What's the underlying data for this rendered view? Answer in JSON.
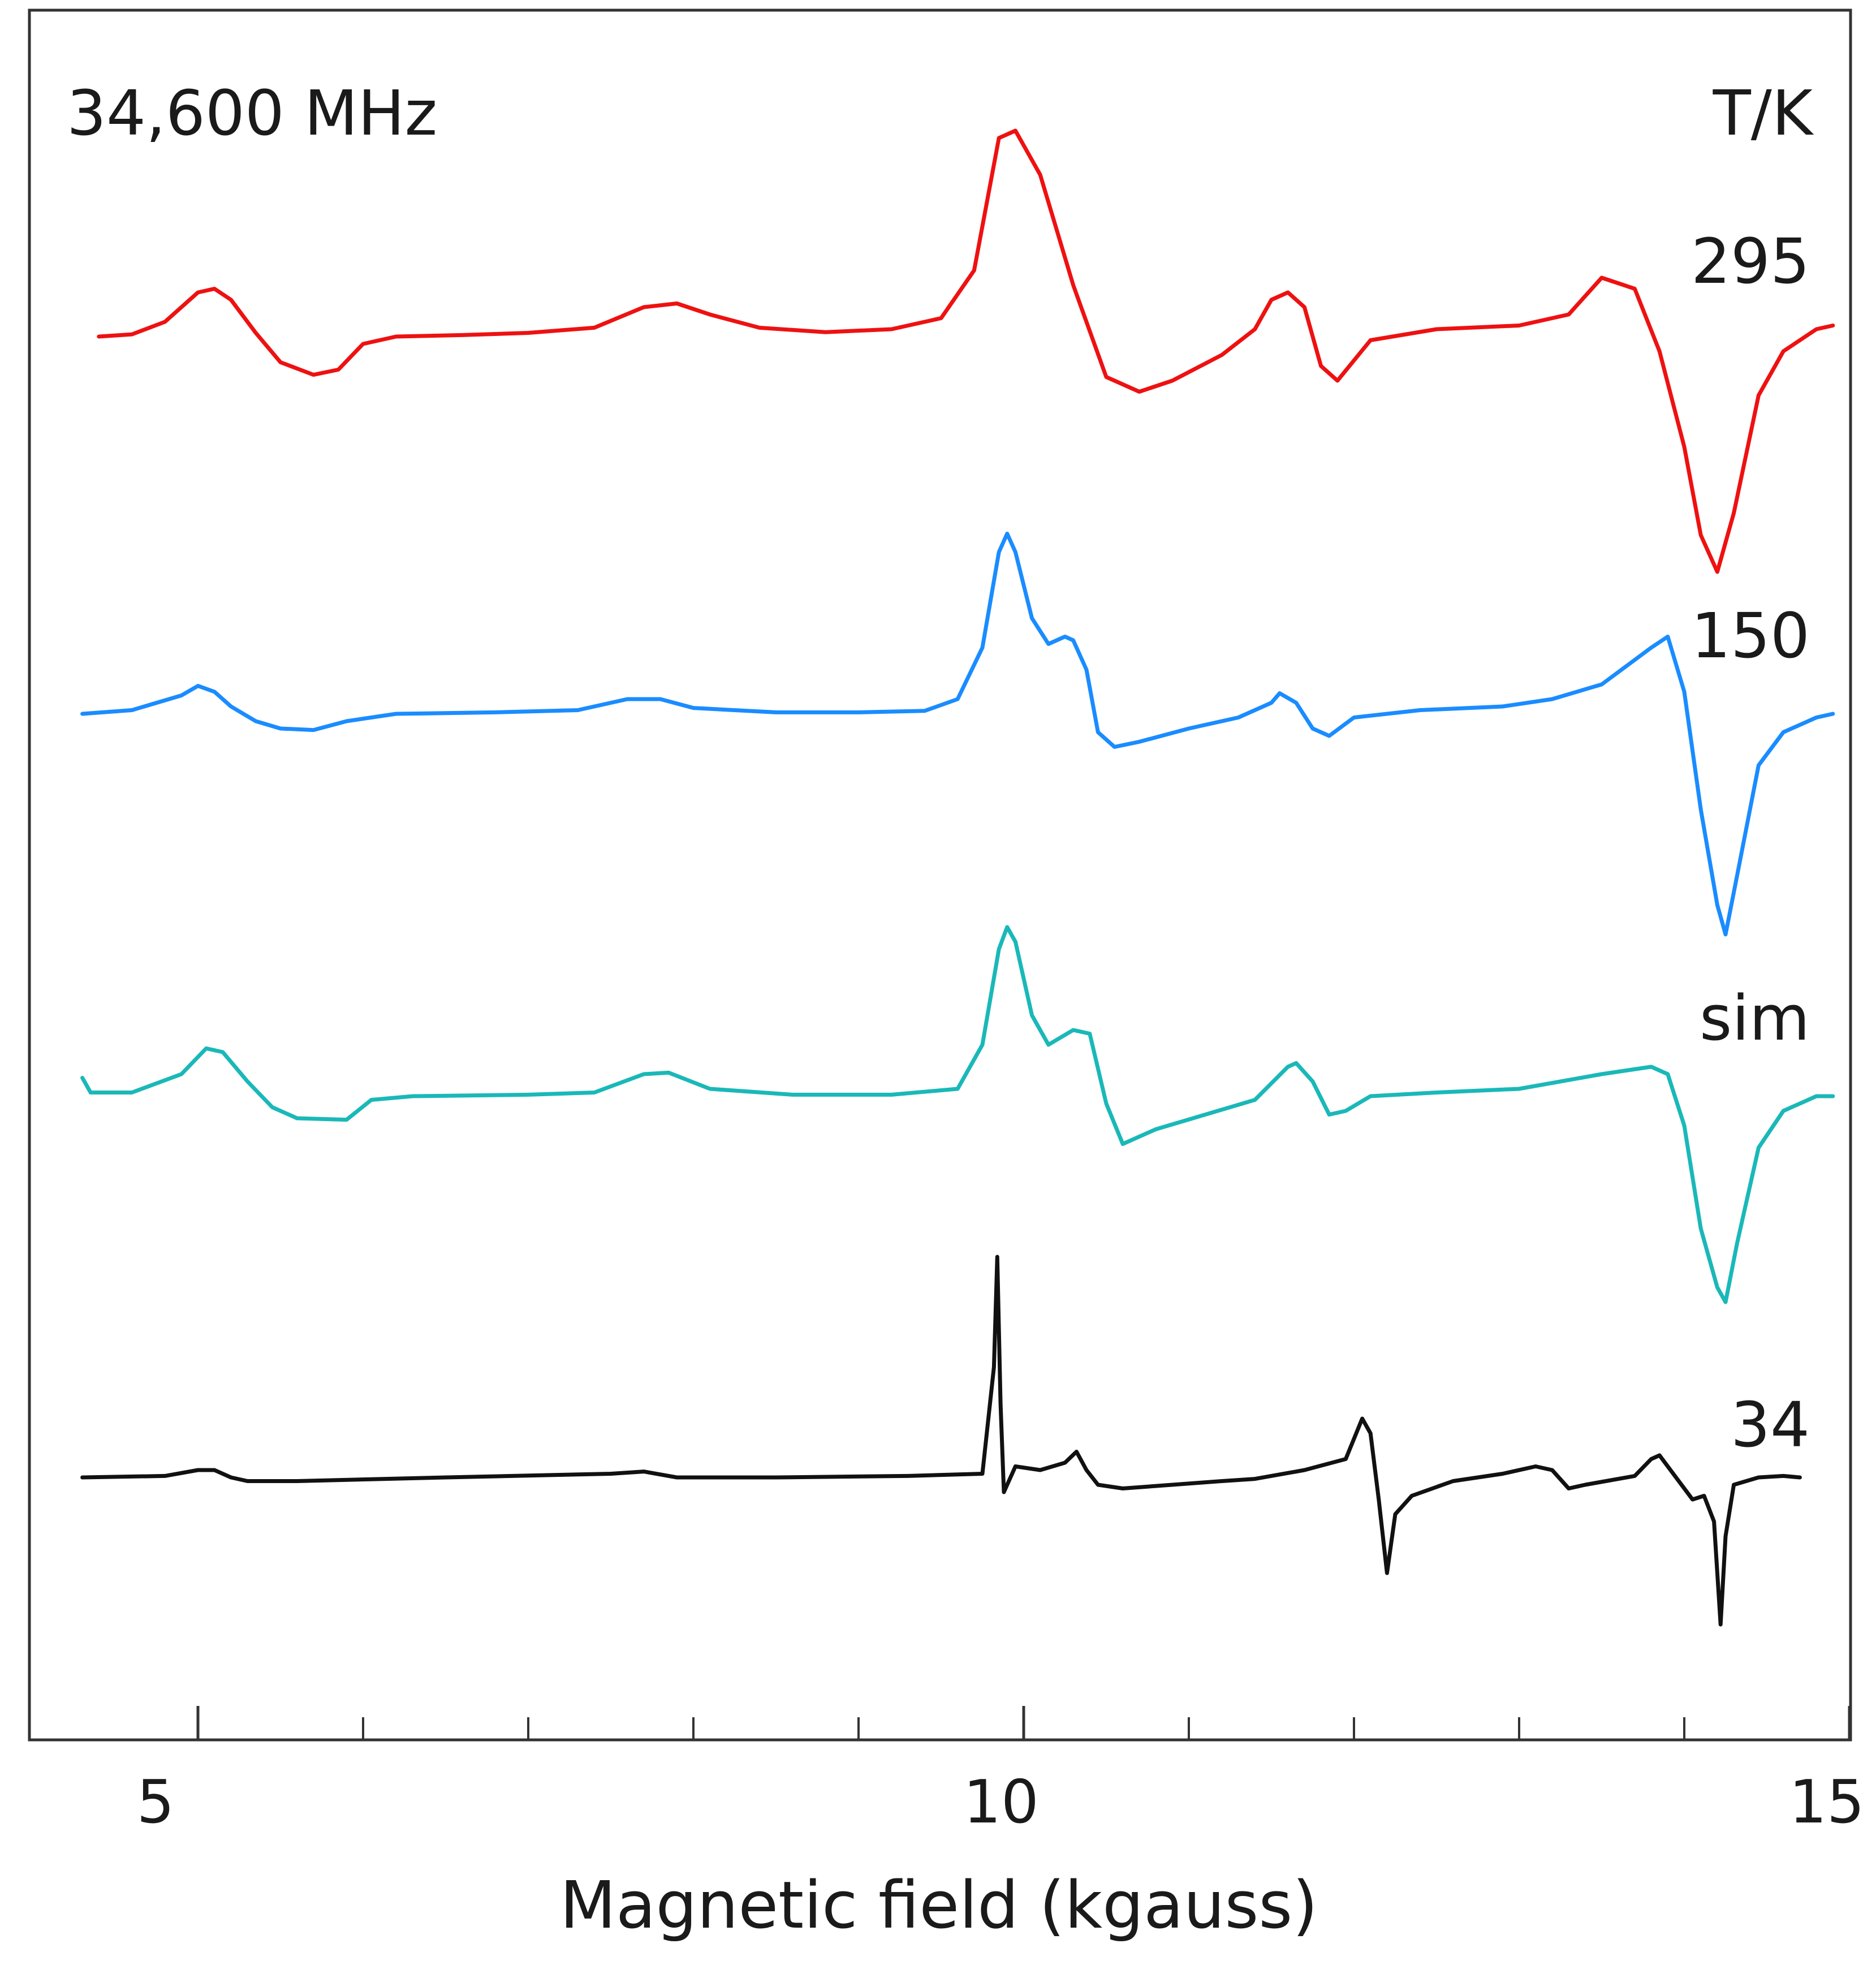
{
  "chart_data": {
    "type": "line",
    "title": "",
    "annotation": "34,600 MHz",
    "legend_title": "T/K",
    "xlabel": "Magnetic field (kgauss)",
    "ylabel": "",
    "xlim": [
      4.0,
      15.0
    ],
    "xticks": [
      5,
      10,
      15
    ],
    "minor_ticks": [
      6,
      7,
      8,
      9,
      11,
      12,
      13,
      14
    ],
    "grid": false,
    "series": [
      {
        "name": "295",
        "color": "#ee1111",
        "points": [
          [
            4.4,
            0.0
          ],
          [
            4.6,
            0.03
          ],
          [
            4.8,
            0.2
          ],
          [
            5.0,
            0.6
          ],
          [
            5.1,
            0.65
          ],
          [
            5.2,
            0.5
          ],
          [
            5.35,
            0.05
          ],
          [
            5.5,
            -0.35
          ],
          [
            5.7,
            -0.52
          ],
          [
            5.85,
            -0.45
          ],
          [
            6.0,
            -0.1
          ],
          [
            6.2,
            0.0
          ],
          [
            6.6,
            0.02
          ],
          [
            7.0,
            0.05
          ],
          [
            7.4,
            0.12
          ],
          [
            7.7,
            0.4
          ],
          [
            7.9,
            0.45
          ],
          [
            8.1,
            0.3
          ],
          [
            8.4,
            0.12
          ],
          [
            8.8,
            0.06
          ],
          [
            9.2,
            0.1
          ],
          [
            9.5,
            0.25
          ],
          [
            9.7,
            0.9
          ],
          [
            9.85,
            2.7
          ],
          [
            9.95,
            2.8
          ],
          [
            10.1,
            2.2
          ],
          [
            10.3,
            0.7
          ],
          [
            10.5,
            -0.55
          ],
          [
            10.7,
            -0.75
          ],
          [
            10.9,
            -0.6
          ],
          [
            11.2,
            -0.25
          ],
          [
            11.4,
            0.1
          ],
          [
            11.5,
            0.5
          ],
          [
            11.6,
            0.6
          ],
          [
            11.7,
            0.4
          ],
          [
            11.8,
            -0.4
          ],
          [
            11.9,
            -0.6
          ],
          [
            12.1,
            -0.05
          ],
          [
            12.5,
            0.1
          ],
          [
            13.0,
            0.15
          ],
          [
            13.3,
            0.3
          ],
          [
            13.5,
            0.8
          ],
          [
            13.7,
            0.65
          ],
          [
            13.85,
            -0.2
          ],
          [
            14.0,
            -1.5
          ],
          [
            14.1,
            -2.7
          ],
          [
            14.2,
            -3.2
          ],
          [
            14.3,
            -2.4
          ],
          [
            14.45,
            -0.8
          ],
          [
            14.6,
            -0.2
          ],
          [
            14.8,
            0.1
          ],
          [
            14.9,
            0.15
          ]
        ]
      },
      {
        "name": "150",
        "color": "#1a8cff",
        "points": [
          [
            4.3,
            0.0
          ],
          [
            4.6,
            0.05
          ],
          [
            4.9,
            0.25
          ],
          [
            5.0,
            0.38
          ],
          [
            5.1,
            0.3
          ],
          [
            5.2,
            0.1
          ],
          [
            5.35,
            -0.1
          ],
          [
            5.5,
            -0.2
          ],
          [
            5.7,
            -0.22
          ],
          [
            5.9,
            -0.1
          ],
          [
            6.2,
            0.0
          ],
          [
            6.8,
            0.02
          ],
          [
            7.3,
            0.05
          ],
          [
            7.6,
            0.2
          ],
          [
            7.8,
            0.2
          ],
          [
            8.0,
            0.08
          ],
          [
            8.5,
            0.02
          ],
          [
            9.0,
            0.02
          ],
          [
            9.4,
            0.04
          ],
          [
            9.6,
            0.2
          ],
          [
            9.75,
            0.9
          ],
          [
            9.85,
            2.2
          ],
          [
            9.9,
            2.45
          ],
          [
            9.95,
            2.2
          ],
          [
            10.05,
            1.3
          ],
          [
            10.15,
            0.95
          ],
          [
            10.25,
            1.05
          ],
          [
            10.3,
            1.0
          ],
          [
            10.38,
            0.6
          ],
          [
            10.45,
            -0.25
          ],
          [
            10.55,
            -0.45
          ],
          [
            10.7,
            -0.38
          ],
          [
            11.0,
            -0.2
          ],
          [
            11.3,
            -0.05
          ],
          [
            11.5,
            0.15
          ],
          [
            11.55,
            0.28
          ],
          [
            11.65,
            0.15
          ],
          [
            11.75,
            -0.2
          ],
          [
            11.85,
            -0.3
          ],
          [
            12.0,
            -0.05
          ],
          [
            12.4,
            0.05
          ],
          [
            12.9,
            0.1
          ],
          [
            13.2,
            0.2
          ],
          [
            13.5,
            0.4
          ],
          [
            13.8,
            0.9
          ],
          [
            13.9,
            1.05
          ],
          [
            14.0,
            0.3
          ],
          [
            14.1,
            -1.3
          ],
          [
            14.2,
            -2.6
          ],
          [
            14.25,
            -3.0
          ],
          [
            14.32,
            -2.2
          ],
          [
            14.45,
            -0.7
          ],
          [
            14.6,
            -0.25
          ],
          [
            14.8,
            -0.05
          ],
          [
            14.9,
            0.0
          ]
        ]
      },
      {
        "name": "sim",
        "color": "#1ab8b8",
        "points": [
          [
            4.3,
            0.25
          ],
          [
            4.35,
            0.05
          ],
          [
            4.6,
            0.05
          ],
          [
            4.9,
            0.3
          ],
          [
            5.05,
            0.65
          ],
          [
            5.15,
            0.6
          ],
          [
            5.3,
            0.2
          ],
          [
            5.45,
            -0.15
          ],
          [
            5.6,
            -0.3
          ],
          [
            5.9,
            -0.32
          ],
          [
            6.05,
            -0.05
          ],
          [
            6.3,
            0.0
          ],
          [
            7.0,
            0.02
          ],
          [
            7.4,
            0.05
          ],
          [
            7.7,
            0.3
          ],
          [
            7.85,
            0.32
          ],
          [
            8.1,
            0.1
          ],
          [
            8.6,
            0.02
          ],
          [
            9.2,
            0.02
          ],
          [
            9.6,
            0.1
          ],
          [
            9.75,
            0.7
          ],
          [
            9.85,
            2.0
          ],
          [
            9.9,
            2.3
          ],
          [
            9.95,
            2.1
          ],
          [
            10.05,
            1.1
          ],
          [
            10.15,
            0.7
          ],
          [
            10.3,
            0.9
          ],
          [
            10.4,
            0.85
          ],
          [
            10.5,
            -0.1
          ],
          [
            10.6,
            -0.65
          ],
          [
            10.8,
            -0.45
          ],
          [
            11.1,
            -0.25
          ],
          [
            11.4,
            -0.05
          ],
          [
            11.6,
            0.4
          ],
          [
            11.65,
            0.45
          ],
          [
            11.75,
            0.2
          ],
          [
            11.85,
            -0.25
          ],
          [
            11.95,
            -0.2
          ],
          [
            12.1,
            0.0
          ],
          [
            12.5,
            0.05
          ],
          [
            13.0,
            0.1
          ],
          [
            13.5,
            0.3
          ],
          [
            13.8,
            0.4
          ],
          [
            13.9,
            0.3
          ],
          [
            14.0,
            -0.4
          ],
          [
            14.1,
            -1.8
          ],
          [
            14.2,
            -2.6
          ],
          [
            14.25,
            -2.8
          ],
          [
            14.32,
            -2.0
          ],
          [
            14.45,
            -0.7
          ],
          [
            14.6,
            -0.2
          ],
          [
            14.8,
            0.0
          ],
          [
            14.9,
            0.0
          ]
        ]
      },
      {
        "name": "34",
        "color": "#111111",
        "points": [
          [
            4.3,
            0.0
          ],
          [
            4.8,
            0.02
          ],
          [
            5.0,
            0.1
          ],
          [
            5.1,
            0.1
          ],
          [
            5.2,
            0.0
          ],
          [
            5.3,
            -0.05
          ],
          [
            5.6,
            -0.05
          ],
          [
            6.5,
            0.0
          ],
          [
            7.5,
            0.05
          ],
          [
            7.7,
            0.08
          ],
          [
            7.9,
            0.0
          ],
          [
            8.5,
            0.0
          ],
          [
            9.3,
            0.02
          ],
          [
            9.75,
            0.05
          ],
          [
            9.82,
            1.5
          ],
          [
            9.84,
            3.0
          ],
          [
            9.86,
            1.0
          ],
          [
            9.88,
            -0.2
          ],
          [
            9.95,
            0.15
          ],
          [
            10.1,
            0.1
          ],
          [
            10.25,
            0.2
          ],
          [
            10.32,
            0.35
          ],
          [
            10.38,
            0.1
          ],
          [
            10.45,
            -0.1
          ],
          [
            10.6,
            -0.15
          ],
          [
            10.9,
            -0.1
          ],
          [
            11.2,
            -0.05
          ],
          [
            11.4,
            -0.02
          ],
          [
            11.7,
            0.1
          ],
          [
            11.95,
            0.25
          ],
          [
            12.05,
            0.8
          ],
          [
            12.1,
            0.6
          ],
          [
            12.15,
            -0.3
          ],
          [
            12.2,
            -1.3
          ],
          [
            12.25,
            -0.5
          ],
          [
            12.35,
            -0.25
          ],
          [
            12.6,
            -0.05
          ],
          [
            12.9,
            0.05
          ],
          [
            13.1,
            0.15
          ],
          [
            13.2,
            0.1
          ],
          [
            13.3,
            -0.15
          ],
          [
            13.4,
            -0.1
          ],
          [
            13.7,
            0.02
          ],
          [
            13.8,
            0.25
          ],
          [
            13.85,
            0.3
          ],
          [
            13.95,
            0.0
          ],
          [
            14.05,
            -0.3
          ],
          [
            14.12,
            -0.25
          ],
          [
            14.18,
            -0.6
          ],
          [
            14.22,
            -2.0
          ],
          [
            14.25,
            -0.8
          ],
          [
            14.3,
            -0.1
          ],
          [
            14.45,
            0.0
          ],
          [
            14.6,
            0.02
          ],
          [
            14.7,
            0.0
          ]
        ]
      }
    ]
  }
}
